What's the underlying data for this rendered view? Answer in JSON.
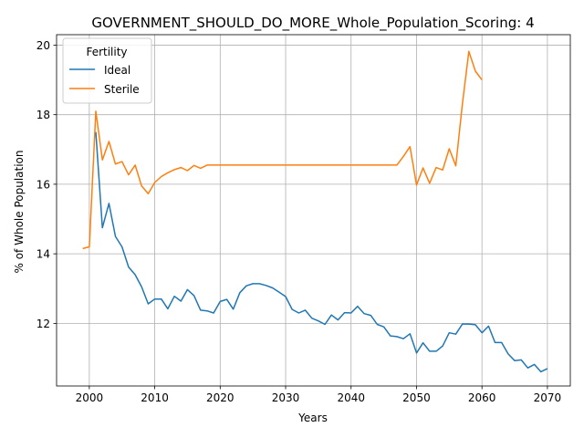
{
  "chart_data": {
    "type": "line",
    "title": "GOVERNMENT_SHOULD_DO_MORE_Whole_Population_Scoring: 4",
    "xlabel": "Years",
    "ylabel": "% of Whole Population",
    "xlim": [
      1995,
      2073.5
    ],
    "ylim": [
      10.2,
      20.3
    ],
    "xticks": [
      2000,
      2010,
      2020,
      2030,
      2040,
      2050,
      2060,
      2070
    ],
    "yticks": [
      12,
      14,
      16,
      18,
      20
    ],
    "grid": true,
    "legend": {
      "title": "Fertility",
      "placement": "top-left"
    },
    "series": [
      {
        "name": "Ideal",
        "color": "#1f77b4",
        "x": [
          2001,
          2002,
          2003,
          2004,
          2005,
          2006,
          2007,
          2008,
          2009,
          2010,
          2011,
          2012,
          2013,
          2014,
          2015,
          2016,
          2017,
          2018,
          2019,
          2020,
          2021,
          2022,
          2023,
          2024,
          2025,
          2026,
          2027,
          2028,
          2029,
          2030,
          2031,
          2032,
          2033,
          2034,
          2035,
          2036,
          2037,
          2038,
          2039,
          2040,
          2041,
          2042,
          2043,
          2044,
          2045,
          2046,
          2047,
          2048,
          2049,
          2050,
          2051,
          2052,
          2053,
          2054,
          2055,
          2056,
          2057,
          2058,
          2059,
          2060,
          2061,
          2062,
          2063,
          2064,
          2065,
          2066,
          2067,
          2068,
          2069,
          2070
        ],
        "y": [
          17.5,
          14.75,
          15.45,
          14.5,
          14.2,
          13.62,
          13.4,
          13.05,
          12.56,
          12.7,
          12.7,
          12.42,
          12.78,
          12.64,
          12.97,
          12.8,
          12.38,
          12.36,
          12.3,
          12.63,
          12.69,
          12.41,
          12.88,
          13.08,
          13.14,
          13.14,
          13.09,
          13.02,
          12.9,
          12.77,
          12.4,
          12.3,
          12.38,
          12.15,
          12.07,
          11.97,
          12.24,
          12.1,
          12.31,
          12.3,
          12.49,
          12.28,
          12.23,
          11.97,
          11.9,
          11.64,
          11.62,
          11.56,
          11.7,
          11.15,
          11.44,
          11.2,
          11.2,
          11.35,
          11.73,
          11.69,
          11.98,
          11.98,
          11.96,
          11.73,
          11.92,
          11.45,
          11.45,
          11.12,
          10.93,
          10.95,
          10.72,
          10.82,
          10.61,
          10.7
        ]
      },
      {
        "name": "Sterile",
        "color": "#ff7f0e",
        "x": [
          1999,
          2000,
          2001,
          2002,
          2003,
          2004,
          2005,
          2006,
          2007,
          2008,
          2009,
          2010,
          2011,
          2012,
          2013,
          2014,
          2015,
          2016,
          2017,
          2018,
          2019,
          2020,
          2021,
          2022,
          2023,
          2024,
          2025,
          2026,
          2027,
          2028,
          2029,
          2030,
          2031,
          2032,
          2033,
          2034,
          2035,
          2036,
          2037,
          2038,
          2039,
          2040,
          2041,
          2042,
          2043,
          2044,
          2045,
          2046,
          2047,
          2048,
          2049,
          2050,
          2051,
          2052,
          2053,
          2054,
          2055,
          2056,
          2057,
          2058,
          2059,
          2060
        ],
        "y": [
          14.15,
          14.2,
          18.1,
          16.7,
          17.23,
          16.58,
          16.65,
          16.27,
          16.55,
          15.95,
          15.73,
          16.05,
          16.22,
          16.33,
          16.42,
          16.48,
          16.39,
          16.54,
          16.46,
          16.55,
          16.55,
          16.55,
          16.55,
          16.55,
          16.55,
          16.55,
          16.55,
          16.55,
          16.55,
          16.55,
          16.55,
          16.55,
          16.55,
          16.55,
          16.55,
          16.55,
          16.55,
          16.55,
          16.55,
          16.55,
          16.55,
          16.55,
          16.55,
          16.55,
          16.55,
          16.55,
          16.55,
          16.55,
          16.55,
          16.8,
          17.08,
          15.98,
          16.47,
          16.03,
          16.48,
          16.41,
          17.02,
          16.53,
          18.3,
          19.82,
          19.25,
          19.0
        ]
      }
    ]
  }
}
